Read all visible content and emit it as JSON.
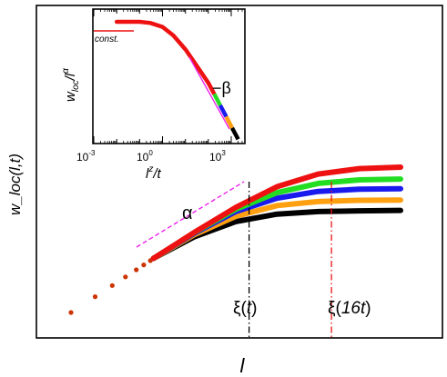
{
  "chart_data": [
    {
      "type": "line",
      "title": "",
      "xlabel": "l",
      "ylabel": "w_loc(l,t)",
      "xscale": "log",
      "yscale": "log",
      "x_ticks_shown": false,
      "y_ticks_shown": false,
      "grid": false,
      "legend": "none",
      "series": [
        {
          "color": "#ee1111",
          "x": [
            1,
            2,
            4,
            8,
            16,
            32,
            64,
            128,
            256
          ],
          "values": [
            1,
            1.88,
            3.54,
            6.55,
            11.7,
            19.0,
            25.5,
            29.0,
            30.0
          ]
        },
        {
          "color": "#22dd22",
          "x": [
            1,
            2,
            4,
            8,
            16,
            32,
            64,
            128,
            256
          ],
          "values": [
            1,
            1.88,
            3.54,
            6.5,
            11.2,
            16.5,
            20.5,
            22.3,
            22.7
          ]
        },
        {
          "color": "#1a1aee",
          "x": [
            1,
            2,
            4,
            8,
            16,
            32,
            64,
            128,
            256
          ],
          "values": [
            1,
            1.88,
            3.54,
            6.4,
            10.6,
            14.5,
            17.0,
            17.9,
            18.1
          ]
        },
        {
          "color": "#ffa010",
          "x": [
            1,
            2,
            4,
            8,
            16,
            32,
            64,
            128,
            256
          ],
          "values": [
            1,
            1.88,
            3.54,
            6.2,
            9.5,
            12.2,
            13.4,
            13.8,
            13.9
          ]
        },
        {
          "color": "#000000",
          "x": [
            1,
            2,
            4,
            8,
            16,
            32,
            64,
            128,
            256
          ],
          "values": [
            1,
            1.88,
            3.54,
            5.9,
            8.4,
            10.0,
            10.6,
            10.8,
            10.9
          ]
        }
      ],
      "reference_lines": [
        {
          "label": "ξ(",
          "label_italic": "t",
          "label_end": ")",
          "color": "#000000",
          "style": "dash-dot",
          "x": 20
        },
        {
          "label": "ξ(",
          "label_italic": "16t",
          "label_end": ")",
          "color": "#ee1111",
          "style": "dash-dot",
          "x": 80
        }
      ],
      "slope_annotation": {
        "label": "α",
        "color": "#ee22ee",
        "style": "dashed"
      }
    },
    {
      "type": "line",
      "title": "",
      "xlabel_main": "l",
      "xlabel_sup": "z",
      "xlabel_end": "/t",
      "ylabel_main": "w",
      "ylabel_sub": "loc",
      "ylabel_end": "/l",
      "ylabel_sup": "α",
      "xscale": "log",
      "yscale": "log",
      "x_tick_base": "10",
      "x_tick_exponents": [
        "-3",
        "0",
        "3"
      ],
      "xlim": [
        0.001,
        3000
      ],
      "grid": false,
      "legend": "none",
      "collapse_curve": {
        "x": [
          0.01,
          0.1,
          0.3,
          1,
          3,
          10,
          30,
          100,
          300,
          1000,
          2000
        ],
        "values": [
          1.0,
          1.0,
          0.95,
          0.8,
          0.55,
          0.3,
          0.15,
          0.07,
          0.03,
          0.012,
          0.007
        ],
        "tail_colors": [
          "#ee1111",
          "#22dd22",
          "#1a1aee",
          "#ffa010",
          "#000000"
        ]
      },
      "const_label": "const.",
      "slope_label": "−β",
      "slope_color": "#ee22ee"
    }
  ]
}
